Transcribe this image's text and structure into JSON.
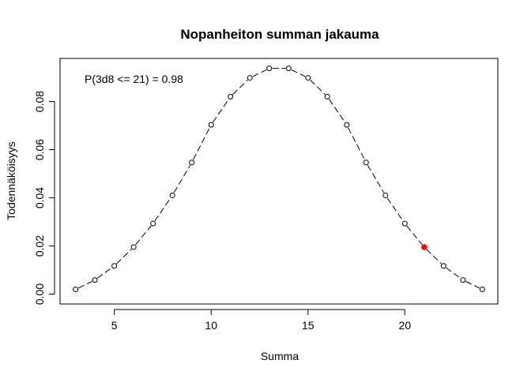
{
  "chart_data": {
    "type": "line",
    "title": "Nopanheiton summan jakauma",
    "xlabel": "Summa",
    "ylabel": "Todennäköisyys",
    "annotation": "P(3d8 <= 21) = 0.98",
    "xlim": [
      2.2,
      24.8
    ],
    "ylim": [
      -0.0041,
      0.0979
    ],
    "x_ticks": [
      5,
      10,
      15,
      20
    ],
    "y_ticks": [
      0.0,
      0.02,
      0.04,
      0.06,
      0.08
    ],
    "y_tick_labels": [
      "0.00",
      "0.02",
      "0.04",
      "0.06",
      "0.08"
    ],
    "x_tick_labels": [
      "5",
      "10",
      "15",
      "20"
    ],
    "line_style": "dashed",
    "grid": false,
    "series": [
      {
        "x": [
          3,
          4,
          5,
          6,
          7,
          8,
          9,
          10,
          11,
          12,
          13,
          14,
          15,
          16,
          17,
          18,
          19,
          20,
          21,
          22,
          23,
          24
        ],
        "values": [
          0.00195,
          0.00586,
          0.01172,
          0.01953,
          0.0293,
          0.04102,
          0.05469,
          0.07031,
          0.08203,
          0.08984,
          0.09375,
          0.09375,
          0.08984,
          0.08203,
          0.07031,
          0.05469,
          0.04102,
          0.0293,
          0.01953,
          0.01172,
          0.00586,
          0.00195
        ]
      }
    ],
    "highlight": {
      "x": 21,
      "y": 0.01953,
      "color": "#ff0000"
    },
    "colors": {
      "line": "#000000",
      "point_fill": "#ffffff",
      "point_stroke": "#000000"
    }
  }
}
